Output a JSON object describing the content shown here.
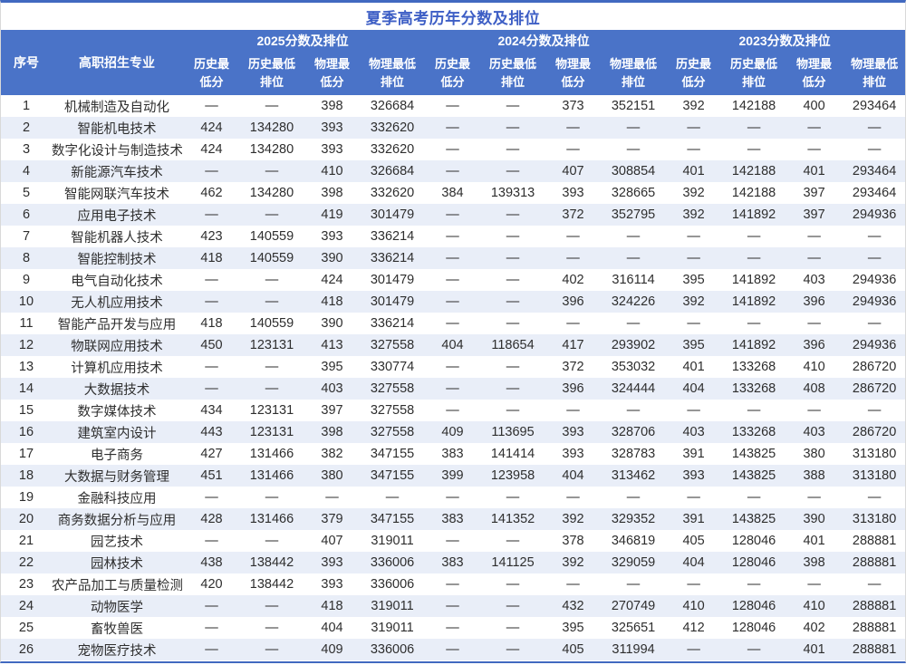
{
  "title": "夏季高考历年分数及排位",
  "colors": {
    "header_bg": "#4A73C8",
    "header_text": "#FFFFFF",
    "row_alt_bg": "#E9EEF8",
    "title_color": "#3D5EC5",
    "border_blue": "#4169C0",
    "edge_gray": "#D9D9D9",
    "text_color": "#2E2E2E"
  },
  "table": {
    "left_headers": [
      "序号",
      "高职招生专业"
    ],
    "year_groups": [
      "2025分数及排位",
      "2024分数及排位",
      "2023分数及排位"
    ],
    "sub_headers": [
      {
        "line1": "历史最",
        "line2": "低分"
      },
      {
        "line1": "历史最低",
        "line2": "排位"
      },
      {
        "line1": "物理最",
        "line2": "低分"
      },
      {
        "line1": "物理最低",
        "line2": "排位"
      }
    ],
    "rows": [
      {
        "no": "1",
        "major": "机械制造及自动化",
        "values": [
          "—",
          "—",
          "398",
          "326684",
          "—",
          "—",
          "373",
          "352151",
          "392",
          "142188",
          "400",
          "293464"
        ]
      },
      {
        "no": "2",
        "major": "智能机电技术",
        "values": [
          "424",
          "134280",
          "393",
          "332620",
          "—",
          "—",
          "—",
          "—",
          "—",
          "—",
          "—",
          "—"
        ]
      },
      {
        "no": "3",
        "major": "数字化设计与制造技术",
        "values": [
          "424",
          "134280",
          "393",
          "332620",
          "—",
          "—",
          "—",
          "—",
          "—",
          "—",
          "—",
          "—"
        ]
      },
      {
        "no": "4",
        "major": "新能源汽车技术",
        "values": [
          "—",
          "—",
          "410",
          "326684",
          "—",
          "—",
          "407",
          "308854",
          "401",
          "142188",
          "401",
          "293464"
        ]
      },
      {
        "no": "5",
        "major": "智能网联汽车技术",
        "values": [
          "462",
          "134280",
          "398",
          "332620",
          "384",
          "139313",
          "393",
          "328665",
          "392",
          "142188",
          "397",
          "293464"
        ]
      },
      {
        "no": "6",
        "major": "应用电子技术",
        "values": [
          "—",
          "—",
          "419",
          "301479",
          "—",
          "—",
          "372",
          "352795",
          "392",
          "141892",
          "397",
          "294936"
        ]
      },
      {
        "no": "7",
        "major": "智能机器人技术",
        "values": [
          "423",
          "140559",
          "393",
          "336214",
          "—",
          "—",
          "—",
          "—",
          "—",
          "—",
          "—",
          "—"
        ]
      },
      {
        "no": "8",
        "major": "智能控制技术",
        "values": [
          "418",
          "140559",
          "390",
          "336214",
          "—",
          "—",
          "—",
          "—",
          "—",
          "—",
          "—",
          "—"
        ]
      },
      {
        "no": "9",
        "major": "电气自动化技术",
        "values": [
          "—",
          "—",
          "424",
          "301479",
          "—",
          "—",
          "402",
          "316114",
          "395",
          "141892",
          "403",
          "294936"
        ]
      },
      {
        "no": "10",
        "major": "无人机应用技术",
        "values": [
          "—",
          "—",
          "418",
          "301479",
          "—",
          "—",
          "396",
          "324226",
          "392",
          "141892",
          "396",
          "294936"
        ]
      },
      {
        "no": "11",
        "major": "智能产品开发与应用",
        "values": [
          "418",
          "140559",
          "390",
          "336214",
          "—",
          "—",
          "—",
          "—",
          "—",
          "—",
          "—",
          "—"
        ]
      },
      {
        "no": "12",
        "major": "物联网应用技术",
        "values": [
          "450",
          "123131",
          "413",
          "327558",
          "404",
          "118654",
          "417",
          "293902",
          "395",
          "141892",
          "396",
          "294936"
        ]
      },
      {
        "no": "13",
        "major": "计算机应用技术",
        "values": [
          "—",
          "—",
          "395",
          "330774",
          "—",
          "—",
          "372",
          "353032",
          "401",
          "133268",
          "410",
          "286720"
        ]
      },
      {
        "no": "14",
        "major": "大数据技术",
        "values": [
          "—",
          "—",
          "403",
          "327558",
          "—",
          "—",
          "396",
          "324444",
          "404",
          "133268",
          "408",
          "286720"
        ]
      },
      {
        "no": "15",
        "major": "数字媒体技术",
        "values": [
          "434",
          "123131",
          "397",
          "327558",
          "—",
          "—",
          "—",
          "—",
          "—",
          "—",
          "—",
          "—"
        ]
      },
      {
        "no": "16",
        "major": "建筑室内设计",
        "values": [
          "443",
          "123131",
          "398",
          "327558",
          "409",
          "113695",
          "393",
          "328706",
          "403",
          "133268",
          "403",
          "286720"
        ]
      },
      {
        "no": "17",
        "major": "电子商务",
        "values": [
          "427",
          "131466",
          "382",
          "347155",
          "383",
          "141414",
          "393",
          "328783",
          "391",
          "143825",
          "380",
          "313180"
        ]
      },
      {
        "no": "18",
        "major": "大数据与财务管理",
        "values": [
          "451",
          "131466",
          "380",
          "347155",
          "399",
          "123958",
          "404",
          "313462",
          "393",
          "143825",
          "388",
          "313180"
        ]
      },
      {
        "no": "19",
        "major": "金融科技应用",
        "values": [
          "—",
          "—",
          "—",
          "—",
          "—",
          "—",
          "—",
          "—",
          "—",
          "—",
          "—",
          "—"
        ]
      },
      {
        "no": "20",
        "major": "商务数据分析与应用",
        "values": [
          "428",
          "131466",
          "379",
          "347155",
          "383",
          "141352",
          "392",
          "329352",
          "391",
          "143825",
          "390",
          "313180"
        ]
      },
      {
        "no": "21",
        "major": "园艺技术",
        "values": [
          "—",
          "—",
          "407",
          "319011",
          "—",
          "—",
          "378",
          "346819",
          "405",
          "128046",
          "401",
          "288881"
        ]
      },
      {
        "no": "22",
        "major": "园林技术",
        "values": [
          "438",
          "138442",
          "393",
          "336006",
          "383",
          "141125",
          "392",
          "329059",
          "404",
          "128046",
          "398",
          "288881"
        ]
      },
      {
        "no": "23",
        "major": "农产品加工与质量检测",
        "values": [
          "420",
          "138442",
          "393",
          "336006",
          "—",
          "—",
          "—",
          "—",
          "—",
          "—",
          "—",
          "—"
        ]
      },
      {
        "no": "24",
        "major": "动物医学",
        "values": [
          "—",
          "—",
          "418",
          "319011",
          "—",
          "—",
          "432",
          "270749",
          "410",
          "128046",
          "410",
          "288881"
        ]
      },
      {
        "no": "25",
        "major": "畜牧兽医",
        "values": [
          "—",
          "—",
          "404",
          "319011",
          "—",
          "—",
          "395",
          "325651",
          "412",
          "128046",
          "402",
          "288881"
        ]
      },
      {
        "no": "26",
        "major": "宠物医疗技术",
        "values": [
          "—",
          "—",
          "409",
          "336006",
          "—",
          "—",
          "405",
          "311994",
          "—",
          "—",
          "401",
          "288881"
        ]
      }
    ]
  }
}
